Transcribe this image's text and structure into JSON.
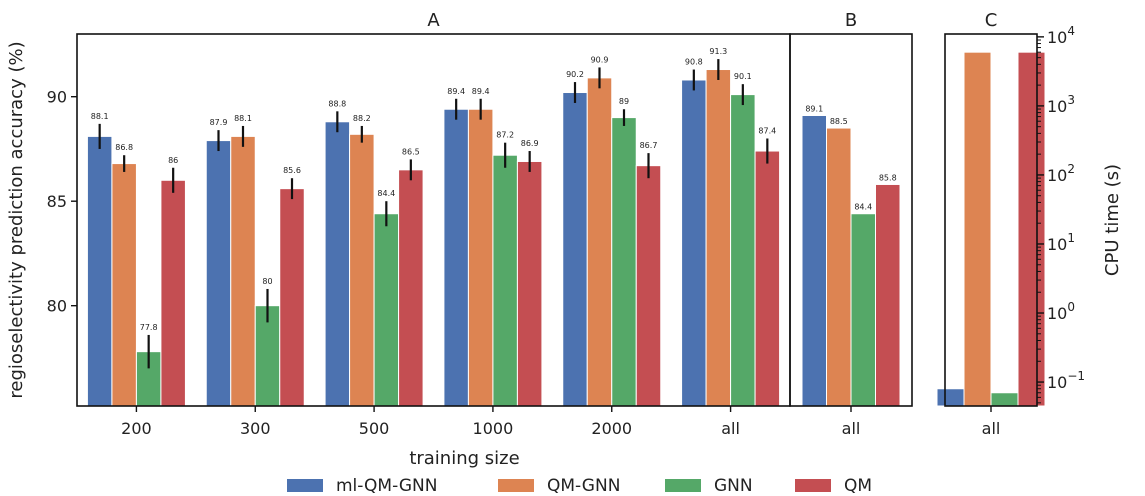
{
  "chart_data": [
    {
      "panel": "A",
      "type": "bar",
      "title": "A",
      "xlabel": "training size",
      "ylabel": "regioselectivity prediction accuracy (%)",
      "ylim": [
        75.2,
        93.0
      ],
      "yticks": [
        80,
        85,
        90
      ],
      "categories": [
        "200",
        "300",
        "500",
        "1000",
        "2000",
        "all"
      ],
      "series": [
        {
          "name": "ml-QM-GNN",
          "color": "#4C72B0",
          "values": [
            88.1,
            87.9,
            88.8,
            89.4,
            90.2,
            90.8
          ],
          "errors": [
            0.6,
            0.5,
            0.5,
            0.5,
            0.5,
            0.5
          ]
        },
        {
          "name": "QM-GNN",
          "color": "#DD8452",
          "values": [
            86.8,
            88.1,
            88.2,
            89.4,
            90.9,
            91.3
          ],
          "errors": [
            0.4,
            0.5,
            0.4,
            0.5,
            0.5,
            0.5
          ]
        },
        {
          "name": "GNN",
          "color": "#55A868",
          "values": [
            77.8,
            80.0,
            84.4,
            87.2,
            89.0,
            90.1
          ],
          "errors": [
            0.8,
            0.8,
            0.6,
            0.6,
            0.4,
            0.5
          ]
        },
        {
          "name": "QM",
          "color": "#C44E52",
          "values": [
            86.0,
            85.6,
            86.5,
            86.9,
            86.7,
            87.4
          ],
          "errors": [
            0.6,
            0.5,
            0.5,
            0.5,
            0.6,
            0.6
          ]
        }
      ]
    },
    {
      "panel": "B",
      "type": "bar",
      "title": "B",
      "ylim": [
        75.2,
        93.0
      ],
      "categories": [
        "all"
      ],
      "series": [
        {
          "name": "ml-QM-GNN",
          "color": "#4C72B0",
          "values": [
            89.1
          ]
        },
        {
          "name": "QM-GNN",
          "color": "#DD8452",
          "values": [
            88.5
          ]
        },
        {
          "name": "GNN",
          "color": "#55A868",
          "values": [
            84.4
          ]
        },
        {
          "name": "QM",
          "color": "#C44E52",
          "values": [
            85.8
          ]
        }
      ]
    },
    {
      "panel": "C",
      "type": "bar",
      "title": "C",
      "ylabel": "CPU time (s)",
      "yscale": "log",
      "ylim": [
        0.045,
        11000
      ],
      "yticks": [
        {
          "value": 0.1,
          "base": "10",
          "exp": "−1"
        },
        {
          "value": 1,
          "base": "10",
          "exp": "0"
        },
        {
          "value": 10,
          "base": "10",
          "exp": "1"
        },
        {
          "value": 100,
          "base": "10",
          "exp": "2"
        },
        {
          "value": 1000,
          "base": "10",
          "exp": "3"
        },
        {
          "value": 10000,
          "base": "10",
          "exp": "4"
        }
      ],
      "categories": [
        "all"
      ],
      "series": [
        {
          "name": "ml-QM-GNN",
          "color": "#4C72B0",
          "values": [
            0.08
          ]
        },
        {
          "name": "QM-GNN",
          "color": "#DD8452",
          "values": [
            6000
          ]
        },
        {
          "name": "GNN",
          "color": "#55A868",
          "values": [
            0.07
          ]
        },
        {
          "name": "QM",
          "color": "#C44E52",
          "values": [
            6000
          ]
        }
      ]
    }
  ],
  "legend": {
    "placement": "bottom",
    "items": [
      {
        "label": "ml-QM-GNN",
        "color": "#4C72B0"
      },
      {
        "label": "QM-GNN",
        "color": "#DD8452"
      },
      {
        "label": "GNN",
        "color": "#55A868"
      },
      {
        "label": "QM",
        "color": "#C44E52"
      }
    ]
  }
}
